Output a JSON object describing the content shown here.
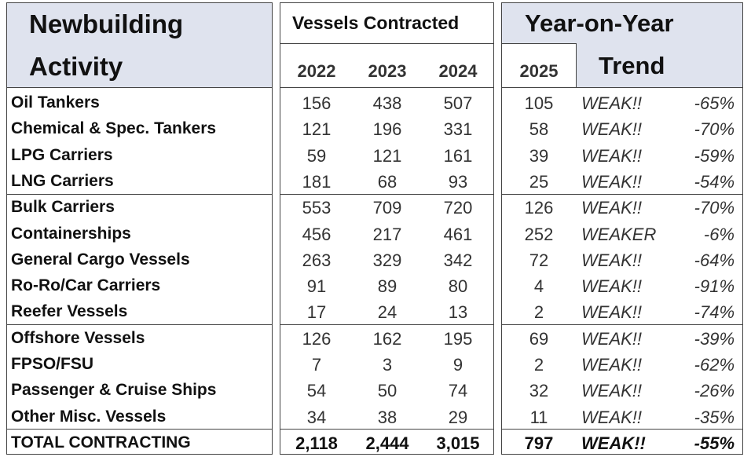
{
  "header": {
    "title_line1": "Newbuilding",
    "title_line2": "Activity",
    "contracted": "Vessels Contracted",
    "years": [
      "2022",
      "2023",
      "2024"
    ],
    "forecast_year": "2025",
    "trend_line1": "Year-on-Year",
    "trend_line2": "Trend"
  },
  "rows": [
    [
      "Oil Tankers",
      "156",
      "438",
      "507",
      "105",
      "WEAK!!",
      "-65%"
    ],
    [
      "Chemical & Spec. Tankers",
      "121",
      "196",
      "331",
      "58",
      "WEAK!!",
      "-70%"
    ],
    [
      "LPG Carriers",
      "59",
      "121",
      "161",
      "39",
      "WEAK!!",
      "-59%"
    ],
    [
      "LNG Carriers",
      "181",
      "68",
      "93",
      "25",
      "WEAK!!",
      "-54%"
    ],
    [
      "Bulk Carriers",
      "553",
      "709",
      "720",
      "126",
      "WEAK!!",
      "-70%"
    ],
    [
      "Containerships",
      "456",
      "217",
      "461",
      "252",
      "WEAKER",
      "-6%"
    ],
    [
      "General Cargo Vessels",
      "263",
      "329",
      "342",
      "72",
      "WEAK!!",
      "-64%"
    ],
    [
      "Ro-Ro/Car Carriers",
      "91",
      "89",
      "80",
      "4",
      "WEAK!!",
      "-91%"
    ],
    [
      "Reefer Vessels",
      "17",
      "24",
      "13",
      "2",
      "WEAK!!",
      "-74%"
    ],
    [
      "Offshore Vessels",
      "126",
      "162",
      "195",
      "69",
      "WEAK!!",
      "-39%"
    ],
    [
      "FPSO/FSU",
      "7",
      "3",
      "9",
      "2",
      "WEAK!!",
      "-62%"
    ],
    [
      "Passenger & Cruise Ships",
      "54",
      "50",
      "74",
      "32",
      "WEAK!!",
      "-26%"
    ],
    [
      "Other Misc. Vessels",
      "34",
      "38",
      "29",
      "11",
      "WEAK!!",
      "-35%"
    ]
  ],
  "total": [
    "TOTAL CONTRACTING",
    "2,118",
    "2,444",
    "3,015",
    "797",
    "WEAK!!",
    "-55%"
  ]
}
